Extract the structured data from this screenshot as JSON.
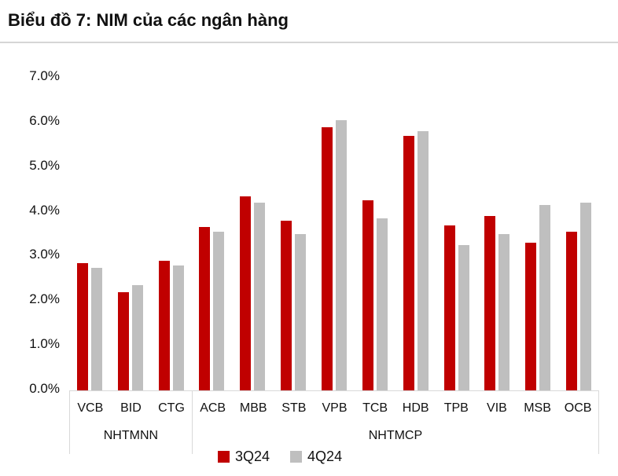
{
  "title": "Biểu đồ 7: NIM của các ngân hàng",
  "chart_data": {
    "type": "bar",
    "title": "Biểu đồ 7: NIM của các ngân hàng",
    "categories": [
      "VCB",
      "BID",
      "CTG",
      "ACB",
      "MBB",
      "STB",
      "VPB",
      "TCB",
      "HDB",
      "TPB",
      "VIB",
      "MSB",
      "OCB"
    ],
    "groups": [
      {
        "label": "NHTMNN",
        "count": 3
      },
      {
        "label": "NHTMCP",
        "count": 10
      }
    ],
    "series": [
      {
        "name": "3Q24",
        "color": "#C00000",
        "values": [
          2.85,
          2.2,
          2.9,
          3.65,
          4.35,
          3.8,
          5.9,
          4.25,
          5.7,
          3.7,
          3.9,
          3.3,
          3.55
        ]
      },
      {
        "name": "4Q24",
        "color": "#BFBFBF",
        "values": [
          2.75,
          2.35,
          2.8,
          3.55,
          4.2,
          3.5,
          6.05,
          3.85,
          5.8,
          3.25,
          3.5,
          4.15,
          4.2
        ]
      }
    ],
    "xlabel": "",
    "ylabel": "",
    "ylim": [
      0.0,
      7.0
    ],
    "y_tick_step": 1.0,
    "y_tick_labels": [
      "0.0%",
      "1.0%",
      "2.0%",
      "3.0%",
      "4.0%",
      "5.0%",
      "6.0%",
      "7.0%"
    ],
    "grid": false,
    "legend_position": "bottom",
    "axis_line_color": "#d9d9d9",
    "text_color": "#111111"
  }
}
